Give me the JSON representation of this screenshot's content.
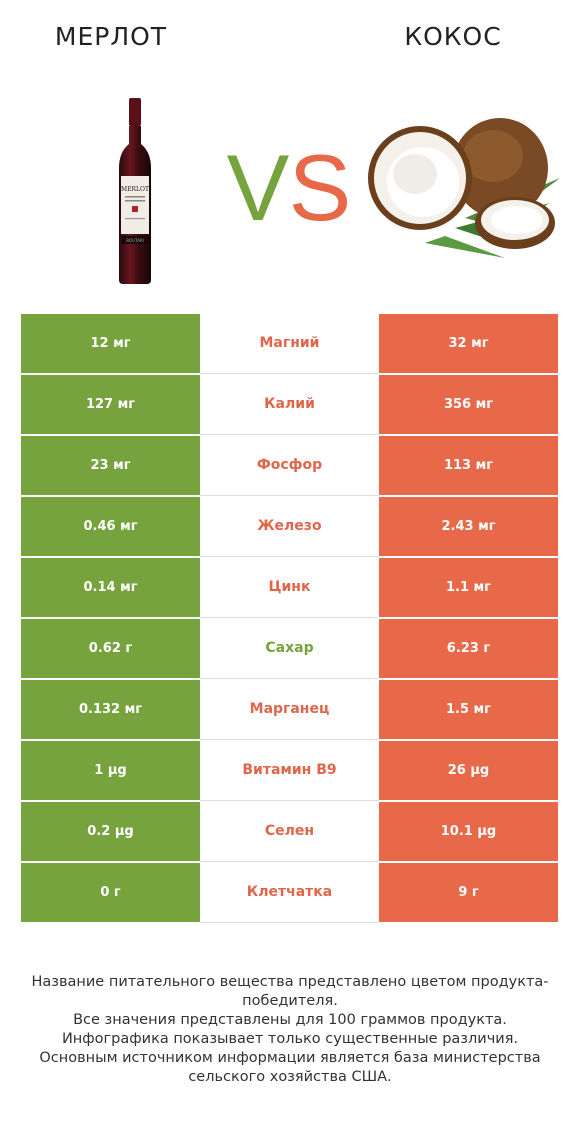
{
  "header": {
    "left_title": "МЕРЛОТ",
    "right_title": "КОКОС",
    "vs_left": "V",
    "vs_right": "S"
  },
  "colors": {
    "left_winner": "#76a33d",
    "right_winner": "#e8694a"
  },
  "rows": [
    {
      "nutrient": "Магний",
      "left": "12 мг",
      "right": "32 мг",
      "winner": "right"
    },
    {
      "nutrient": "Калий",
      "left": "127 мг",
      "right": "356 мг",
      "winner": "right"
    },
    {
      "nutrient": "Фосфор",
      "left": "23 мг",
      "right": "113 мг",
      "winner": "right"
    },
    {
      "nutrient": "Железо",
      "left": "0.46 мг",
      "right": "2.43 мг",
      "winner": "right"
    },
    {
      "nutrient": "Цинк",
      "left": "0.14 мг",
      "right": "1.1 мг",
      "winner": "right"
    },
    {
      "nutrient": "Сахар",
      "left": "0.62 г",
      "right": "6.23 г",
      "winner": "left"
    },
    {
      "nutrient": "Марганец",
      "left": "0.132 мг",
      "right": "1.5 мг",
      "winner": "right"
    },
    {
      "nutrient": "Витамин B9",
      "left": "1 µg",
      "right": "26 µg",
      "winner": "right"
    },
    {
      "nutrient": "Селен",
      "left": "0.2 µg",
      "right": "10.1 µg",
      "winner": "right"
    },
    {
      "nutrient": "Клетчатка",
      "left": "0 г",
      "right": "9 г",
      "winner": "right"
    }
  ],
  "footer": {
    "line1": "Название питательного вещества представлено цветом продукта-победителя.",
    "line2": "Все значения представлены для 100 граммов продукта.",
    "line3": "Инфографика показывает только существенные различия.",
    "line4": "Основным источником информации является база министерства сельского хозяйства США."
  },
  "icons": {
    "left_product": "wine-bottle-icon",
    "right_product": "coconut-icon"
  }
}
